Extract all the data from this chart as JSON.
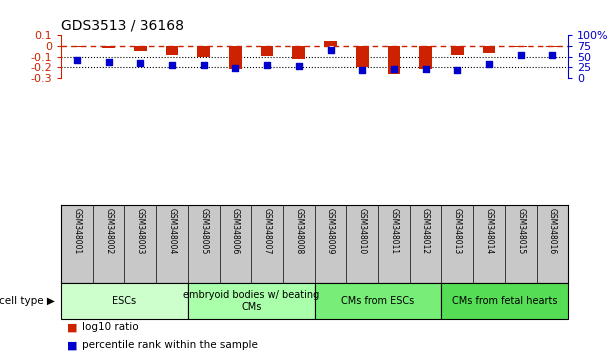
{
  "title": "GDS3513 / 36168",
  "samples": [
    "GSM348001",
    "GSM348002",
    "GSM348003",
    "GSM348004",
    "GSM348005",
    "GSM348006",
    "GSM348007",
    "GSM348008",
    "GSM348009",
    "GSM348010",
    "GSM348011",
    "GSM348012",
    "GSM348013",
    "GSM348014",
    "GSM348015",
    "GSM348016"
  ],
  "log10_ratio": [
    -0.01,
    -0.02,
    -0.05,
    -0.08,
    -0.1,
    -0.22,
    -0.09,
    -0.12,
    0.045,
    -0.2,
    -0.26,
    -0.22,
    -0.08,
    -0.07,
    -0.01,
    -0.01
  ],
  "percentile_rank": [
    42,
    37,
    35,
    31,
    31,
    23,
    30,
    28,
    65,
    18,
    20,
    20,
    18,
    32,
    53,
    55
  ],
  "ylim_left": [
    -0.3,
    0.1
  ],
  "ylim_right": [
    0,
    100
  ],
  "yticks_left": [
    -0.3,
    -0.2,
    -0.1,
    0.0,
    0.1
  ],
  "ytick_labels_left": [
    "-0.3",
    "-0.2",
    "-0.1",
    "0",
    "0.1"
  ],
  "yticks_right": [
    0,
    25,
    50,
    75,
    100
  ],
  "ytick_labels_right": [
    "0",
    "25",
    "50",
    "75",
    "100%"
  ],
  "bar_color": "#cc2200",
  "dot_color": "#0000cc",
  "dashed_line_color": "#cc2200",
  "dotted_line_color": "#000000",
  "cell_type_groups": [
    {
      "label": "ESCs",
      "start": 0,
      "end": 3,
      "color": "#ccffcc"
    },
    {
      "label": "embryoid bodies w/ beating\nCMs",
      "start": 4,
      "end": 7,
      "color": "#aaffaa"
    },
    {
      "label": "CMs from ESCs",
      "start": 8,
      "end": 11,
      "color": "#77ee77"
    },
    {
      "label": "CMs from fetal hearts",
      "start": 12,
      "end": 15,
      "color": "#55dd55"
    }
  ],
  "legend_items": [
    {
      "label": "log10 ratio",
      "color": "#cc2200"
    },
    {
      "label": "percentile rank within the sample",
      "color": "#0000cc"
    }
  ],
  "cell_type_label": "cell type",
  "background_color": "#ffffff",
  "plot_bg_color": "#ffffff",
  "tick_label_color_left": "#cc2200",
  "tick_label_color_right": "#0000cc",
  "label_area_color": "#c8c8c8"
}
